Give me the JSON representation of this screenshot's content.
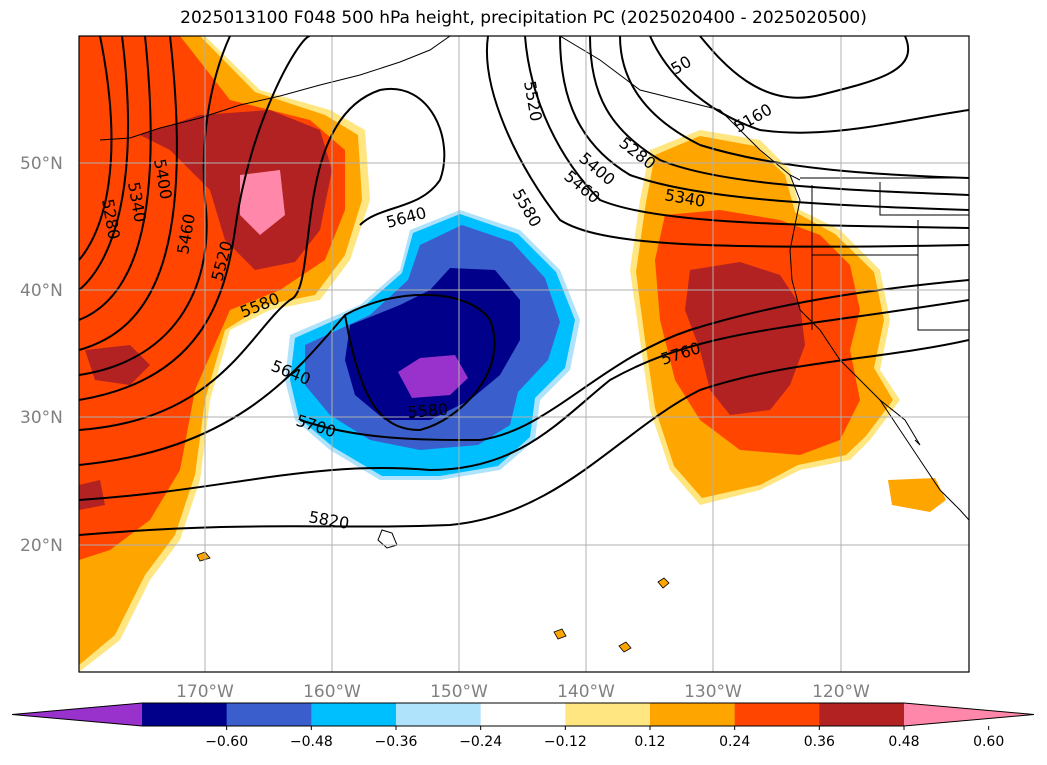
{
  "title": "2025013100 F048 500 hPa height, precipitation PC (2025020400 - 2025020500)",
  "map": {
    "lat_labels": [
      "50°N",
      "40°N",
      "30°N",
      "20°N"
    ],
    "lon_labels": [
      "170°W",
      "160°W",
      "150°W",
      "140°W",
      "130°W",
      "120°W"
    ],
    "gridlines": true,
    "contour_labels": [
      "5280",
      "5340",
      "5400",
      "5460",
      "5520",
      "5580",
      "5640",
      "5700",
      "5820",
      "5520",
      "5580",
      "5640",
      "5580",
      "5400",
      "5460",
      "5280",
      "5340",
      "5160",
      "5760",
      "50"
    ]
  },
  "colorbar": {
    "ticks": [
      "−0.60",
      "−0.48",
      "−0.36",
      "−0.24",
      "−0.12",
      "0.12",
      "0.24",
      "0.36",
      "0.48",
      "0.60"
    ],
    "colors": [
      "#9932cc",
      "#00008b",
      "#3a5fcd",
      "#00bfff",
      "#afe2fb",
      "#ffffff",
      "#ffe680",
      "#ffa500",
      "#ff4500",
      "#b22222",
      "#ff88aa"
    ]
  }
}
